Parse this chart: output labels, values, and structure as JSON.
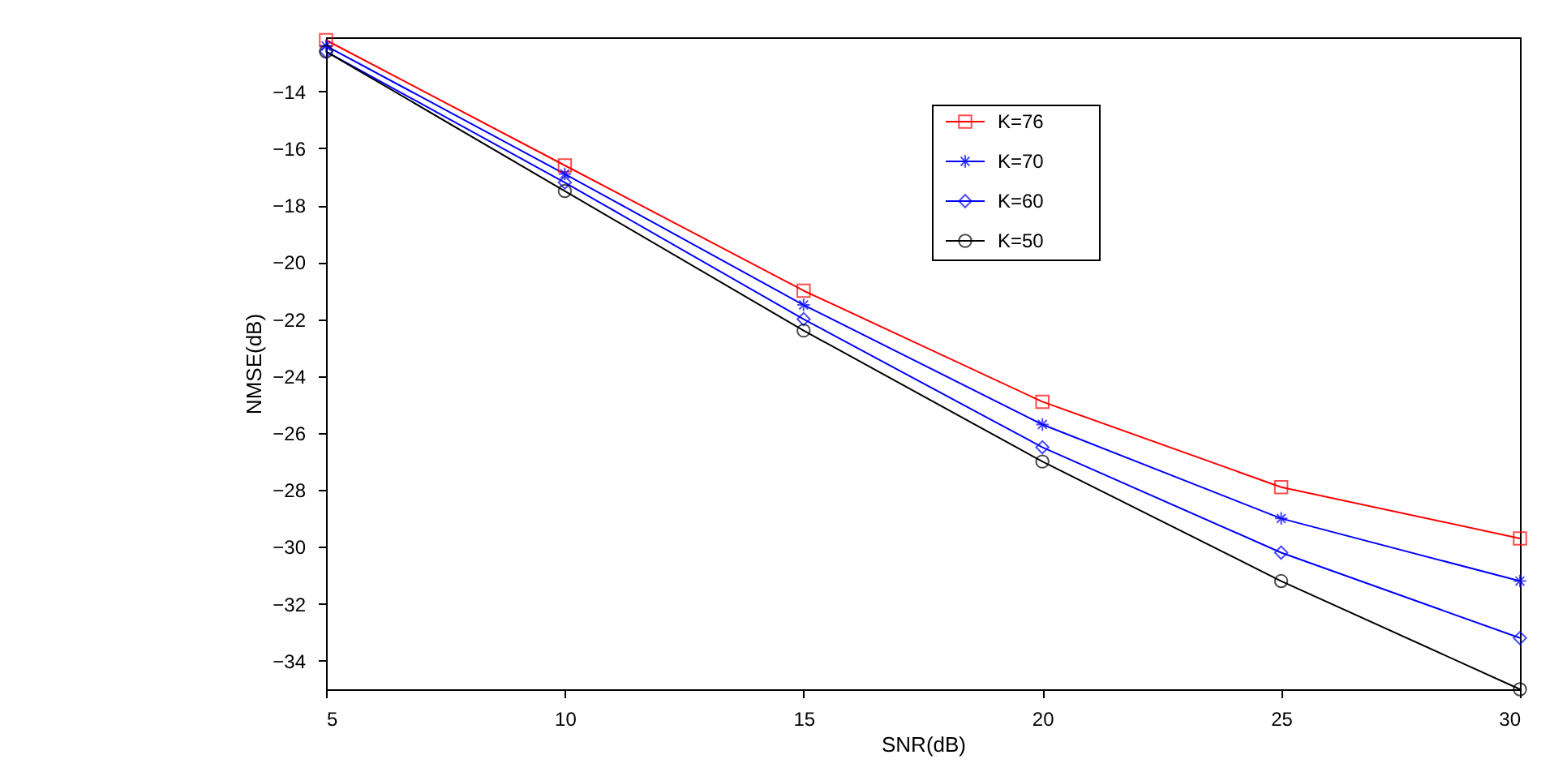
{
  "chart_data": {
    "type": "line",
    "xlabel": "SNR(dB)",
    "ylabel": "NMSE(dB)",
    "x": [
      5,
      10,
      15,
      20,
      25,
      30
    ],
    "xlim": [
      5,
      30
    ],
    "xticks": [
      5,
      10,
      15,
      20,
      25,
      30
    ],
    "ylim": [
      -35,
      -12.1
    ],
    "yticks": [
      -34,
      -32,
      -30,
      -28,
      -26,
      -24,
      -22,
      -20,
      -18,
      -16,
      -14
    ],
    "grid": false,
    "legend": "top right",
    "line_style": "solid",
    "series": [
      {
        "name": "K=76",
        "color": "#ff0000",
        "marker": "square",
        "values": [
          -12.2,
          -16.6,
          -21.0,
          -24.9,
          -27.9,
          -29.7
        ]
      },
      {
        "name": "K=70",
        "color": "#0000ff",
        "marker": "cross",
        "values": [
          -12.4,
          -16.9,
          -21.5,
          -25.7,
          -29.0,
          -31.2
        ]
      },
      {
        "name": "K=60",
        "color": "#0000ff",
        "marker": "diamond",
        "values": [
          -12.6,
          -17.2,
          -22.0,
          -26.5,
          -30.2,
          -33.2
        ]
      },
      {
        "name": "K=50",
        "color": "#000000",
        "marker": "circle",
        "values": [
          -12.6,
          -17.5,
          -22.4,
          -27.0,
          -31.2,
          -35.0
        ]
      }
    ]
  }
}
